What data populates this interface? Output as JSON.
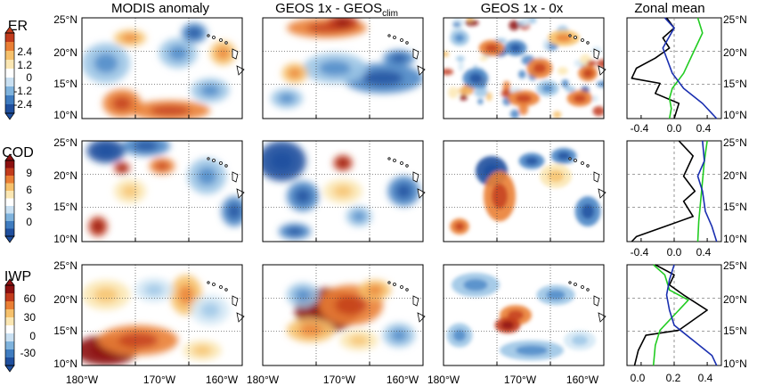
{
  "column_titles": {
    "col1": "MODIS anomaly",
    "col2_main": "GEOS 1x - GEOS",
    "col2_sub": "clim",
    "col3": "GEOS 1x - 0x",
    "col4": "Zonal mean"
  },
  "row_labels": [
    "ER",
    "COD",
    "IWP"
  ],
  "colorbars": [
    {
      "label": "ER",
      "ticks": [
        "2.4",
        "1.2",
        "0",
        "-1.2",
        "-2.4"
      ]
    },
    {
      "label": "COD",
      "ticks": [
        "9",
        "6",
        "3",
        "0"
      ]
    },
    {
      "label": "IWP",
      "ticks": [
        "60",
        "30",
        "0",
        "-30"
      ]
    }
  ],
  "lat_ticks": [
    "25°N",
    "20°N",
    "15°N",
    "10°N"
  ],
  "lon_ticks": [
    "180°W",
    "170°W",
    "160°W"
  ],
  "zonal_xticks": [
    [
      "-0.4",
      "0.0",
      "0.4"
    ],
    [
      "-0.4",
      "0.0",
      "0.4"
    ],
    [
      "0.0",
      "0.2",
      "0.4"
    ]
  ],
  "colors": {
    "negative_dark": "#1f4f9e",
    "negative_light": "#c9e0f2",
    "positive_light": "#fbe0a0",
    "positive_dark": "#8c1010",
    "line_black": "#000000",
    "line_green": "#22cc22",
    "line_blue": "#1a2fb0"
  }
}
